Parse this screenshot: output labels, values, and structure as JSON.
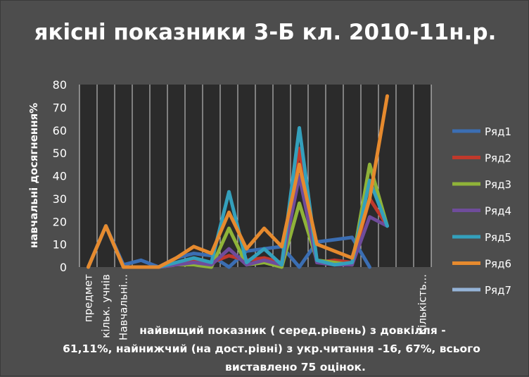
{
  "chart_data": {
    "type": "line",
    "title": "якісні показники 3-Б кл. 2010-11н.р.",
    "ylabel": "навчальні досягнення%",
    "xlabel_lines": [
      "найвищий показник ( серед.рівень) з довкілля -",
      "61,11%, найнижчий (на дост.рівні) з укр.читання -16, 67%, всього",
      "виставлено 75 оцінок."
    ],
    "ylim": [
      0,
      80
    ],
    "yticks": [
      0,
      10,
      20,
      30,
      40,
      50,
      60,
      70,
      80
    ],
    "categories": [
      "предмет",
      "кільк. учнів",
      "Навчальні...",
      "",
      "",
      "",
      "",
      "",
      "",
      "",
      "",
      "",
      "",
      "",
      "",
      "",
      "",
      "",
      "",
      "Кількість..."
    ],
    "grid": "vertical",
    "legend_position": "right",
    "series": [
      {
        "name": "Ряд1",
        "color": "#3b6eb3",
        "values": [
          0,
          18,
          1,
          3,
          0,
          4,
          6,
          5,
          0,
          7,
          8,
          9,
          0,
          11,
          12,
          13,
          0,
          null,
          null,
          null
        ]
      },
      {
        "name": "Ряд2",
        "color": "#c0392b",
        "values": [
          0,
          18,
          0,
          0,
          0,
          2,
          3,
          2,
          5,
          3,
          4,
          2,
          52,
          2,
          3,
          2,
          30,
          18,
          null,
          null
        ]
      },
      {
        "name": "Ряд3",
        "color": "#8fb339",
        "values": [
          0,
          18,
          0,
          0,
          0,
          1,
          1,
          0,
          17,
          1,
          2,
          0,
          28,
          3,
          2,
          1,
          45,
          18,
          null,
          null
        ]
      },
      {
        "name": "Ряд4",
        "color": "#6f4c9b",
        "values": [
          0,
          18,
          0,
          0,
          0,
          1,
          2,
          1,
          8,
          1,
          3,
          1,
          40,
          2,
          1,
          1,
          22,
          18,
          null,
          null
        ]
      },
      {
        "name": "Ряд5",
        "color": "#34a0bc",
        "values": [
          0,
          18,
          0,
          0,
          0,
          2,
          4,
          2,
          33,
          2,
          8,
          1,
          61,
          3,
          1,
          2,
          38,
          18,
          null,
          null
        ]
      },
      {
        "name": "Ряд6",
        "color": "#e68a2e",
        "values": [
          0,
          18,
          0,
          0,
          0,
          4,
          9,
          6,
          24,
          8,
          17,
          9,
          45,
          10,
          7,
          4,
          30,
          75,
          null,
          null
        ]
      },
      {
        "name": "Ряд7",
        "color": "#95b3d7",
        "values": [
          null,
          null,
          null,
          null,
          null,
          null,
          null,
          null,
          null,
          null,
          null,
          null,
          null,
          null,
          null,
          null,
          null,
          null,
          null,
          null
        ]
      }
    ]
  }
}
